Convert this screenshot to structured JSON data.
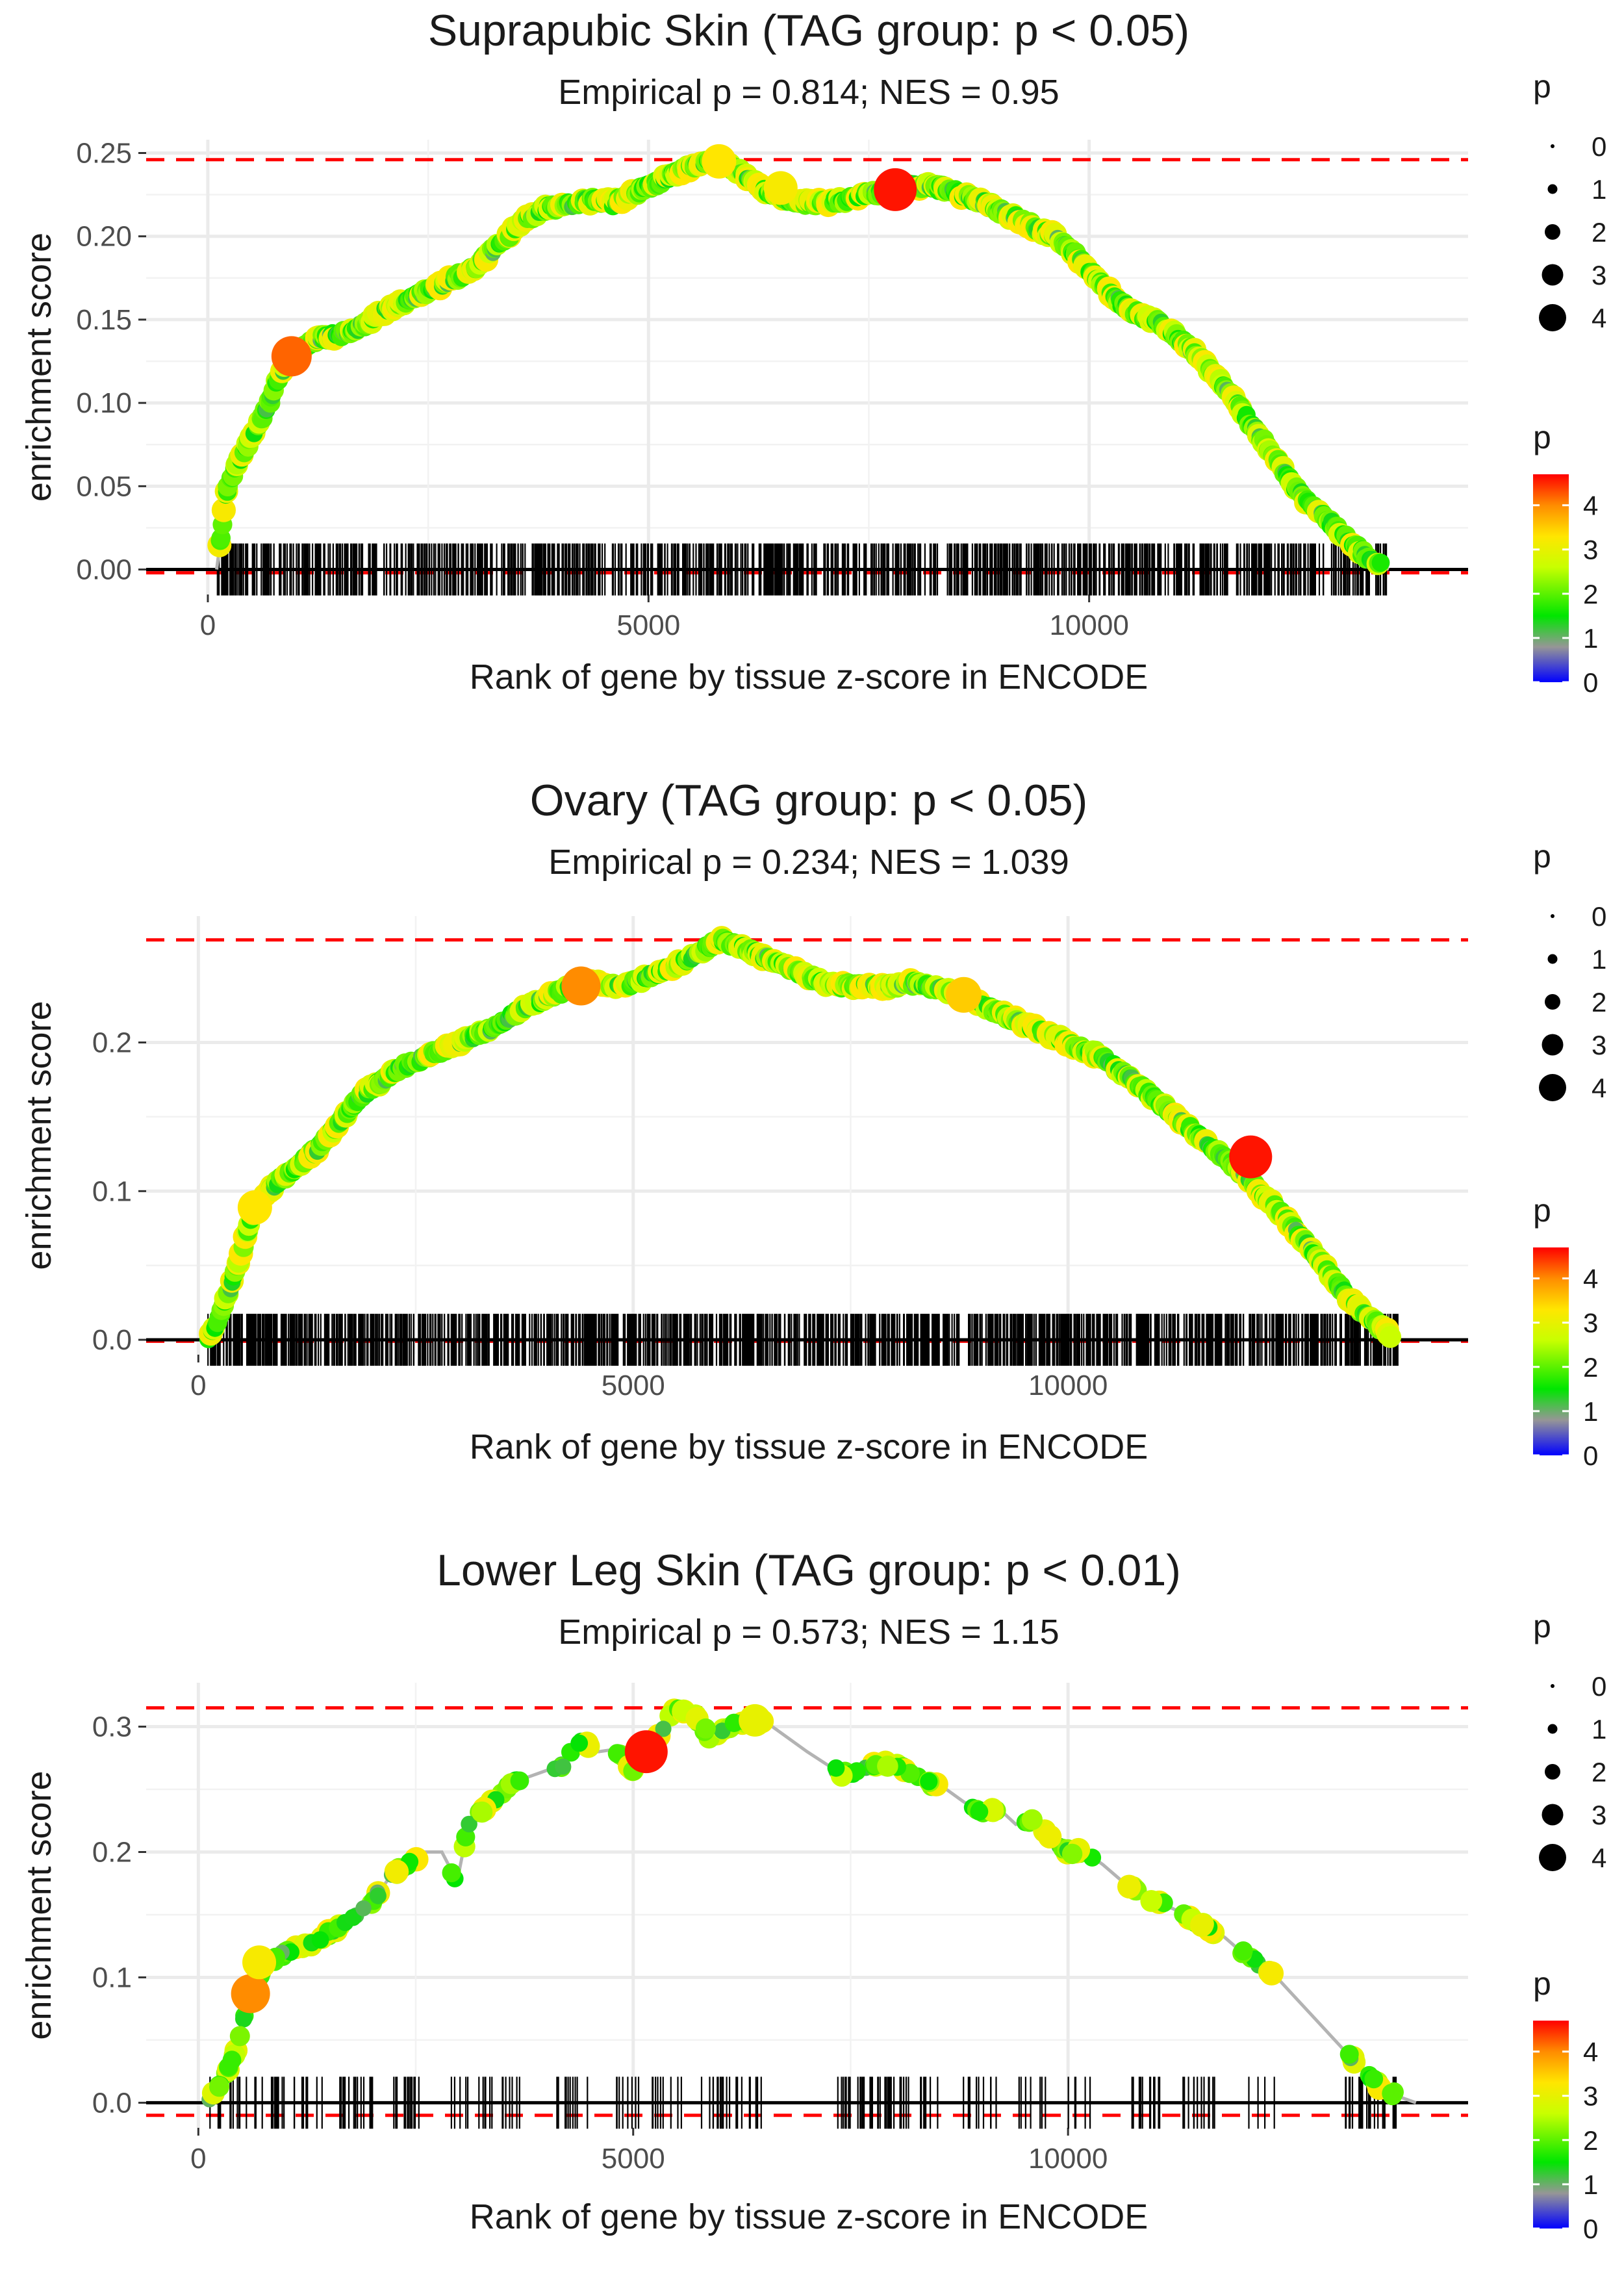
{
  "chart_data": [
    {
      "type": "scatter",
      "title": "Suprapubic Skin (TAG group: p < 0.05)",
      "subtitle": "Empirical p = 0.814; NES = 0.95",
      "xlabel": "Rank of gene by tissue z-score in ENCODE",
      "ylabel": "enrichment score",
      "xlim": [
        -700,
        14300
      ],
      "ylim": [
        -0.015,
        0.258
      ],
      "xticks": [
        0,
        5000,
        10000
      ],
      "xtick_labels": [
        "0",
        "5000",
        "10000"
      ],
      "yticks": [
        0,
        0.05,
        0.1,
        0.15,
        0.2,
        0.25
      ],
      "ytick_labels": [
        "0.00",
        "0.05",
        "0.10",
        "0.15",
        "0.20",
        "0.25"
      ],
      "max_es": 0.246,
      "min_es": -0.002,
      "n_genes": 13400,
      "n_hits": 900,
      "curve_x": [
        100,
        150,
        200,
        300,
        400,
        500,
        600,
        700,
        800,
        900,
        1000,
        1200,
        1400,
        1600,
        1800,
        2000,
        2200,
        2400,
        2600,
        2800,
        3000,
        3200,
        3400,
        3600,
        3800,
        4000,
        4200,
        4400,
        4600,
        4800,
        5000,
        5200,
        5400,
        5600,
        5800,
        6000,
        6200,
        6400,
        6600,
        6800,
        7000,
        7200,
        7400,
        7600,
        7800,
        8000,
        8200,
        8400,
        8600,
        8800,
        9000,
        9200,
        9400,
        9600,
        9800,
        10000,
        10200,
        10400,
        10600,
        10800,
        11000,
        11200,
        11400,
        11600,
        11800,
        12000,
        12200,
        12400,
        12600,
        12800,
        13000,
        13200,
        13400
      ],
      "curve_y": [
        0.0,
        0.02,
        0.045,
        0.06,
        0.07,
        0.08,
        0.09,
        0.1,
        0.115,
        0.125,
        0.13,
        0.138,
        0.14,
        0.142,
        0.148,
        0.155,
        0.16,
        0.165,
        0.17,
        0.175,
        0.18,
        0.19,
        0.2,
        0.21,
        0.216,
        0.218,
        0.22,
        0.222,
        0.22,
        0.225,
        0.23,
        0.235,
        0.24,
        0.243,
        0.246,
        0.24,
        0.232,
        0.225,
        0.222,
        0.22,
        0.22,
        0.222,
        0.224,
        0.226,
        0.228,
        0.23,
        0.23,
        0.228,
        0.224,
        0.22,
        0.215,
        0.21,
        0.205,
        0.2,
        0.192,
        0.18,
        0.168,
        0.158,
        0.152,
        0.148,
        0.14,
        0.13,
        0.118,
        0.105,
        0.09,
        0.075,
        0.06,
        0.045,
        0.035,
        0.025,
        0.015,
        0.005,
        0.0
      ],
      "highlights": [
        {
          "x": 950,
          "y": 0.128,
          "p": 4.2
        },
        {
          "x": 7800,
          "y": 0.228,
          "p": 4.6
        },
        {
          "x": 5800,
          "y": 0.245,
          "p": 3.3
        },
        {
          "x": 6500,
          "y": 0.229,
          "p": 3.2
        }
      ],
      "legend_size": {
        "title": "p",
        "labels": [
          "0",
          "1",
          "2",
          "3",
          "4"
        ]
      },
      "legend_color": {
        "title": "p",
        "labels": [
          "4",
          "3",
          "2",
          "1",
          "0"
        ]
      }
    },
    {
      "type": "scatter",
      "title": "Ovary (TAG group: p < 0.05)",
      "subtitle": "Empirical p = 0.234; NES = 1.039",
      "xlabel": "Rank of gene by tissue z-score in ENCODE",
      "ylabel": "enrichment score",
      "xlim": [
        -600,
        14600
      ],
      "ylim": [
        -0.01,
        0.285
      ],
      "xticks": [
        0,
        5000,
        10000
      ],
      "xtick_labels": [
        "0",
        "5000",
        "10000"
      ],
      "yticks": [
        0,
        0.1,
        0.2
      ],
      "ytick_labels": [
        "0.0",
        "0.1",
        "0.2"
      ],
      "max_es": 0.269,
      "min_es": -0.001,
      "n_genes": 13800,
      "n_hits": 1150,
      "curve_x": [
        100,
        200,
        300,
        400,
        500,
        600,
        800,
        1000,
        1200,
        1400,
        1600,
        1800,
        2000,
        2200,
        2400,
        2600,
        2800,
        3000,
        3200,
        3400,
        3600,
        3800,
        4000,
        4200,
        4400,
        4600,
        4800,
        5000,
        5200,
        5400,
        5600,
        5800,
        6000,
        6200,
        6400,
        6600,
        6800,
        7000,
        7200,
        7400,
        7600,
        7800,
        8000,
        8200,
        8400,
        8600,
        8800,
        9000,
        9200,
        9400,
        9600,
        9800,
        10000,
        10200,
        10400,
        10600,
        10800,
        11000,
        11200,
        11400,
        11600,
        11800,
        12000,
        12200,
        12400,
        12600,
        12800,
        13000,
        13200,
        13400,
        13600,
        13800
      ],
      "curve_y": [
        0.0,
        0.01,
        0.025,
        0.04,
        0.06,
        0.08,
        0.1,
        0.11,
        0.12,
        0.13,
        0.145,
        0.16,
        0.17,
        0.178,
        0.185,
        0.19,
        0.195,
        0.2,
        0.205,
        0.21,
        0.218,
        0.225,
        0.23,
        0.235,
        0.24,
        0.24,
        0.238,
        0.24,
        0.245,
        0.25,
        0.255,
        0.262,
        0.269,
        0.265,
        0.26,
        0.255,
        0.25,
        0.245,
        0.24,
        0.238,
        0.238,
        0.238,
        0.238,
        0.24,
        0.238,
        0.235,
        0.23,
        0.225,
        0.22,
        0.215,
        0.21,
        0.205,
        0.2,
        0.195,
        0.19,
        0.18,
        0.172,
        0.162,
        0.152,
        0.142,
        0.132,
        0.122,
        0.112,
        0.1,
        0.088,
        0.075,
        0.06,
        0.045,
        0.03,
        0.018,
        0.008,
        0.0
      ],
      "highlights": [
        {
          "x": 12100,
          "y": 0.123,
          "p": 4.6
        },
        {
          "x": 4400,
          "y": 0.238,
          "p": 4.0
        },
        {
          "x": 650,
          "y": 0.089,
          "p": 3.3
        },
        {
          "x": 8800,
          "y": 0.232,
          "p": 3.5
        }
      ],
      "legend_size": {
        "title": "p",
        "labels": [
          "0",
          "1",
          "2",
          "3",
          "4"
        ]
      },
      "legend_color": {
        "title": "p",
        "labels": [
          "4",
          "3",
          "2",
          "1",
          "0"
        ]
      }
    },
    {
      "type": "scatter",
      "title": "Lower Leg Skin (TAG group: p < 0.01)",
      "subtitle": "Empirical p = 0.573; NES = 1.15",
      "xlabel": "Rank of gene by tissue z-score in ENCODE",
      "ylabel": "enrichment score",
      "xlim": [
        -600,
        14600
      ],
      "ylim": [
        -0.02,
        0.335
      ],
      "xticks": [
        0,
        5000,
        10000
      ],
      "xtick_labels": [
        "0",
        "5000",
        "10000"
      ],
      "yticks": [
        0,
        0.1,
        0.2,
        0.3
      ],
      "ytick_labels": [
        "0.0",
        "0.1",
        "0.2",
        "0.3"
      ],
      "max_es": 0.315,
      "min_es": -0.01,
      "n_genes": 14000,
      "n_hits": 260,
      "curve_x": [
        100,
        200,
        300,
        400,
        500,
        600,
        700,
        800,
        1000,
        1200,
        1400,
        1600,
        1800,
        2000,
        2200,
        2400,
        2600,
        2800,
        2950,
        3000,
        3100,
        3200,
        3400,
        3600,
        3800,
        4000,
        4200,
        4400,
        4600,
        4800,
        5000,
        5100,
        5200,
        5300,
        5500,
        5700,
        5900,
        6100,
        6300,
        6500,
        6600,
        7000,
        7400,
        7600,
        7800,
        8000,
        8200,
        8400,
        8600,
        8800,
        9000,
        9200,
        9400,
        9600,
        9800,
        10000,
        10200,
        10400,
        10600,
        10800,
        11000,
        11200,
        11400,
        11600,
        11800,
        12000,
        12200,
        12400,
        12600,
        12800,
        13000,
        13200,
        13400,
        13600,
        13800,
        14000
      ],
      "curve_y": [
        0.0,
        0.01,
        0.02,
        0.035,
        0.06,
        0.085,
        0.1,
        0.11,
        0.12,
        0.125,
        0.13,
        0.14,
        0.15,
        0.16,
        0.18,
        0.19,
        0.2,
        0.2,
        0.18,
        0.185,
        0.22,
        0.23,
        0.24,
        0.255,
        0.26,
        0.265,
        0.27,
        0.29,
        0.28,
        0.282,
        0.265,
        0.275,
        0.28,
        0.295,
        0.315,
        0.31,
        0.29,
        0.3,
        0.305,
        0.305,
        0.3,
        0.28,
        0.262,
        0.265,
        0.27,
        0.27,
        0.262,
        0.255,
        0.25,
        0.24,
        0.232,
        0.235,
        0.222,
        0.225,
        0.21,
        0.2,
        0.2,
        0.19,
        0.178,
        0.17,
        0.16,
        0.155,
        0.148,
        0.14,
        0.132,
        0.12,
        0.11,
        0.1,
        0.085,
        0.07,
        0.055,
        0.04,
        0.025,
        0.012,
        0.005,
        0.0
      ],
      "highlights": [
        {
          "x": 600,
          "y": 0.087,
          "p": 4.0
        },
        {
          "x": 5150,
          "y": 0.28,
          "p": 4.6
        },
        {
          "x": 700,
          "y": 0.112,
          "p": 3.2
        },
        {
          "x": 6400,
          "y": 0.305,
          "p": 3.0
        }
      ],
      "legend_size": {
        "title": "p",
        "labels": [
          "0",
          "1",
          "2",
          "3",
          "4"
        ]
      },
      "legend_color": {
        "title": "p",
        "labels": [
          "4",
          "3",
          "2",
          "1",
          "0"
        ]
      }
    }
  ]
}
